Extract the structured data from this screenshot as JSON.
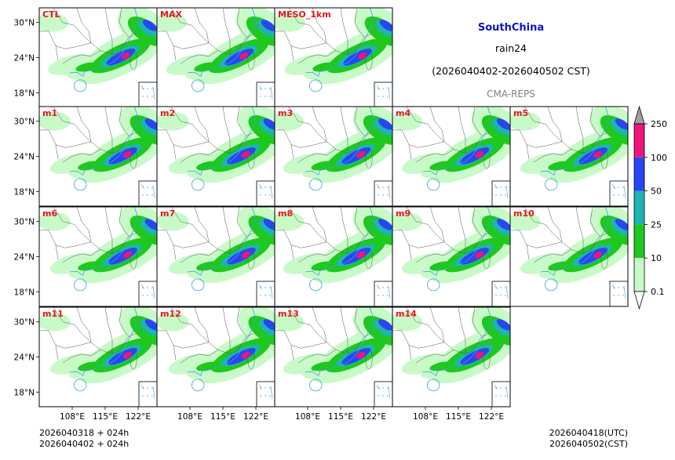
{
  "header": {
    "region": "SouthChina",
    "variable": "rain24",
    "period": "(2026040402-2026040502 CST)",
    "model": "CMA-REPS"
  },
  "colors": {
    "region": "#0a14c8",
    "panel_label": "#e8141e",
    "model": "#808080",
    "coast": "#3aa0e0",
    "border": "#555555"
  },
  "chart_data": {
    "type": "heatmap",
    "title": "SouthChina rain24 (2026040402-2026040502 CST)",
    "panels": [
      "CTL",
      "MAX",
      "MESO_1km",
      "m1",
      "m2",
      "m3",
      "m4",
      "m5",
      "m6",
      "m7",
      "m8",
      "m9",
      "m10",
      "m11",
      "m12",
      "m13",
      "m14"
    ],
    "lon_ticks": [
      "108°E",
      "115°E",
      "122°E"
    ],
    "lat_ticks": [
      "30°N",
      "24°N",
      "18°N"
    ],
    "lon_range": [
      101,
      126
    ],
    "lat_range": [
      15.5,
      32.5
    ],
    "colorbar": {
      "levels": [
        "0.1",
        "10",
        "25",
        "50",
        "100",
        "250"
      ],
      "colors": [
        "#c8fac8",
        "#1ec81e",
        "#1eb4b4",
        "#2846f0",
        "#f0147d"
      ],
      "over_color": "#a0a0a0",
      "under_color": "#ffffff"
    }
  },
  "footer": {
    "left_line1": "2026040318  +  024h",
    "left_line2": "2026040402  +  024h",
    "right_line1": "2026040418(UTC)",
    "right_line2": "2026040502(CST)"
  }
}
